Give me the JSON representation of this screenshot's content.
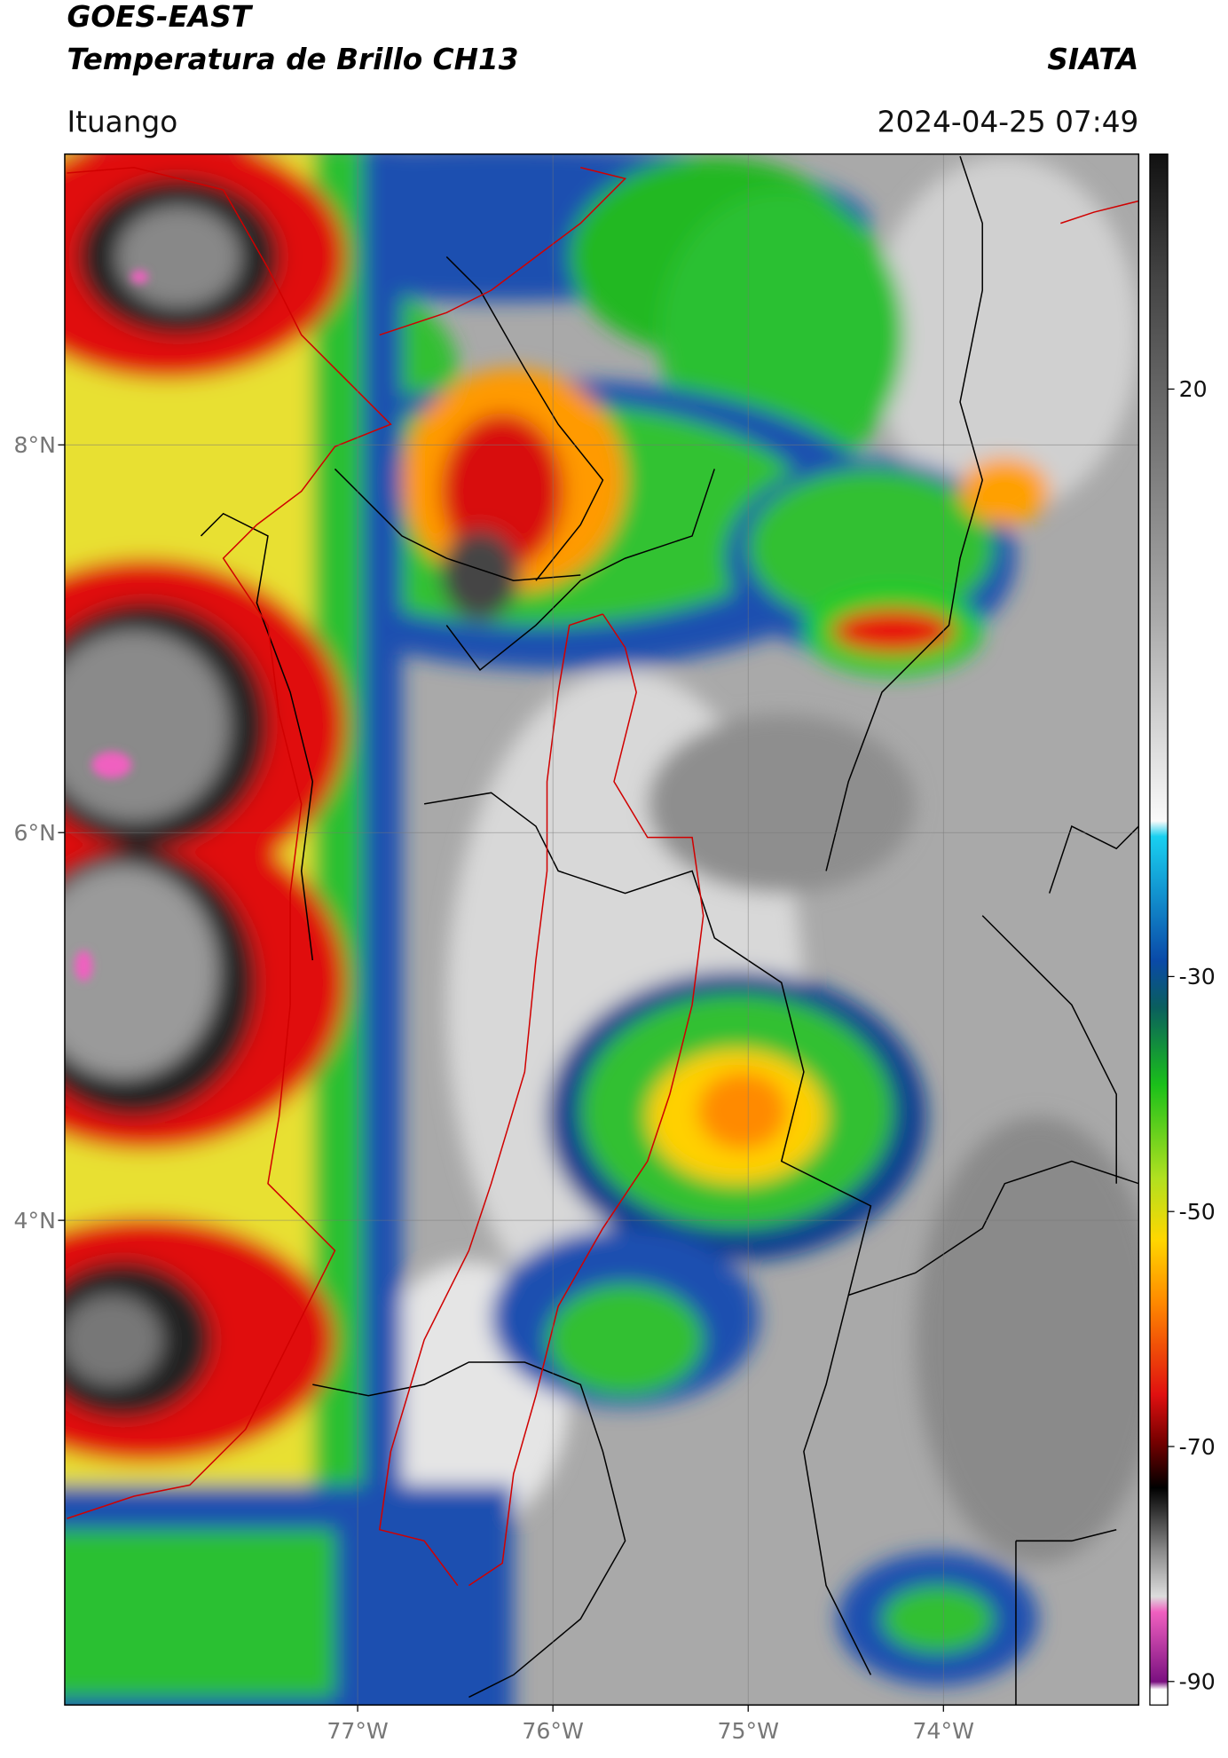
{
  "header": {
    "title_line1": "GOES-EAST",
    "title_line2": "Temperatura de Brillo CH13",
    "source": "SIATA",
    "location": "Ituango",
    "datetime": "2024-04-25 07:49"
  },
  "map": {
    "xlim": [
      -78.5,
      -73
    ],
    "ylim": [
      1.5,
      9.5
    ],
    "xticks": [
      {
        "value": -77,
        "label": "77°W"
      },
      {
        "value": -76,
        "label": "76°W"
      },
      {
        "value": -75,
        "label": "75°W"
      },
      {
        "value": -74,
        "label": "74°W"
      }
    ],
    "yticks": [
      {
        "value": 8,
        "label": "8°N"
      },
      {
        "value": 6,
        "label": "6°N"
      },
      {
        "value": 4,
        "label": "4°N"
      }
    ]
  },
  "colorbar": {
    "lim": [
      -92,
      40
    ],
    "ticks": [
      20,
      -30,
      -50,
      -70,
      -90
    ]
  }
}
